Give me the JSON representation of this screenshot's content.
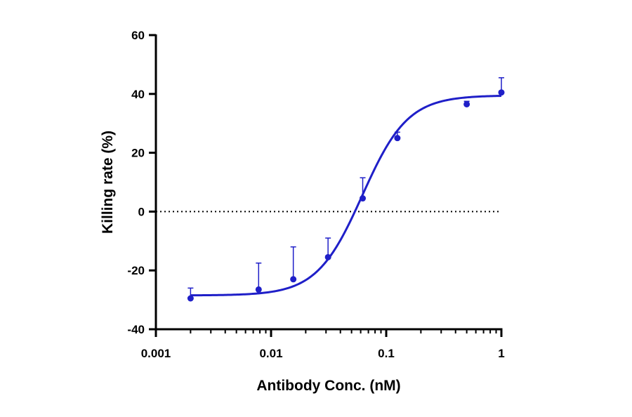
{
  "chart_data": {
    "type": "scatter",
    "title": "",
    "xlabel": "Antibody Conc. (nM)",
    "ylabel": "Killing rate (%)",
    "x_scale": "log",
    "xlim": [
      0.001,
      1
    ],
    "ylim": [
      -40,
      60
    ],
    "x_ticks": [
      "0.001",
      "0.01",
      "0.1",
      "1"
    ],
    "y_ticks": [
      "-40",
      "-20",
      "0",
      "20",
      "40",
      "60"
    ],
    "grid": false,
    "reference_line_y": 0,
    "color": "#1f1fc8",
    "points": [
      {
        "x": 0.002,
        "y": -29.5,
        "err": 3.5
      },
      {
        "x": 0.0078,
        "y": -26.5,
        "err": 9
      },
      {
        "x": 0.0156,
        "y": -23.0,
        "err": 11
      },
      {
        "x": 0.03125,
        "y": -15.5,
        "err": 6.5
      },
      {
        "x": 0.0625,
        "y": 4.5,
        "err": 7
      },
      {
        "x": 0.125,
        "y": 25.0,
        "err": 2
      },
      {
        "x": 0.5,
        "y": 36.5,
        "err": 1
      },
      {
        "x": 1.0,
        "y": 40.5,
        "err": 5
      }
    ],
    "fit": {
      "bottom": -28.5,
      "top": 39.5,
      "ec50": 0.062,
      "hill": 2.2
    }
  }
}
